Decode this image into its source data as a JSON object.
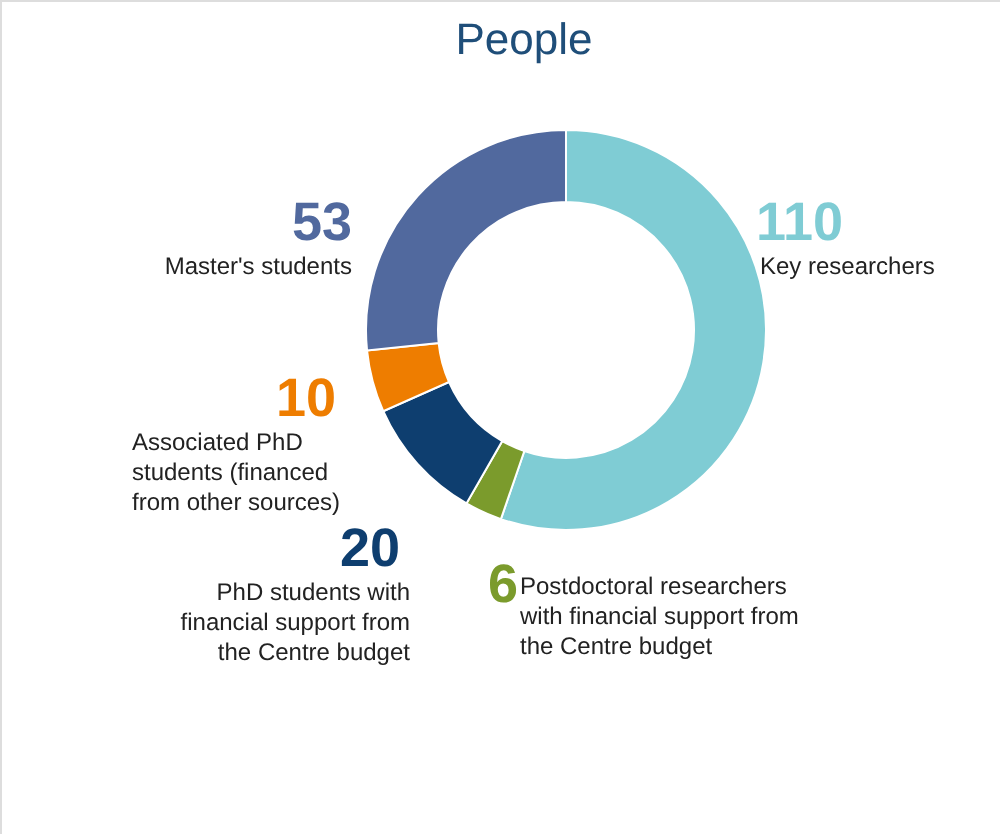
{
  "chart_data": {
    "type": "donut",
    "title": "People",
    "categories": [
      "Key researchers",
      "Postdoctoral researchers with financial support from the Centre budget",
      "PhD students with financial support from the Centre budget",
      "Associated PhD students (financed from other sources)",
      "Master's students"
    ],
    "values": [
      110,
      6,
      20,
      10,
      53
    ],
    "colors": [
      "#7fccd4",
      "#7b9b2c",
      "#0e3e6f",
      "#ee7d00",
      "#51699e"
    ],
    "data_labels": true
  }
}
